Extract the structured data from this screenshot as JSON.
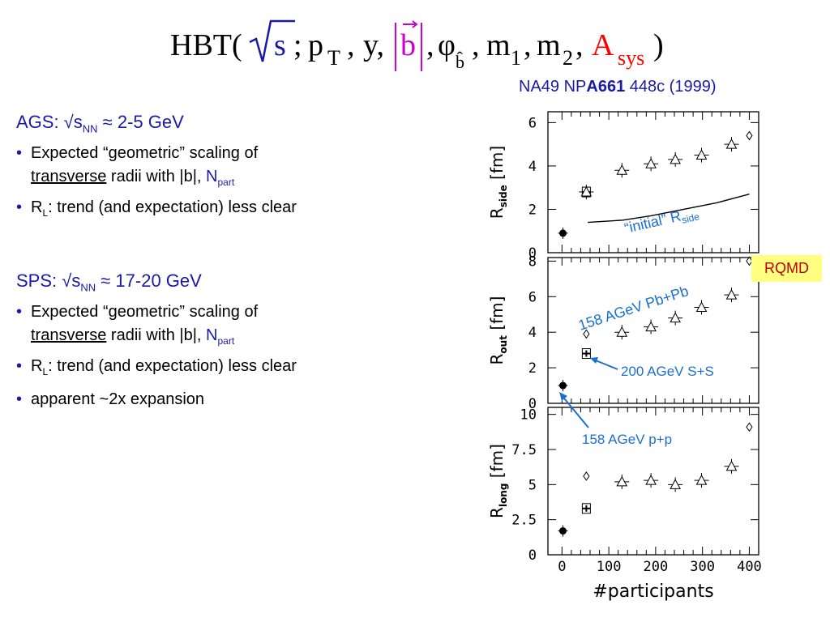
{
  "title": {
    "prefix": "HBT(",
    "sqrt_s": "s",
    "semicolon": ";",
    "p": "p",
    "p_sub": "T",
    "sep1": ",",
    "y": "y,",
    "b": "b",
    "sep2": ",",
    "phi": "φ",
    "phi_sub": "b̂",
    "m1": "m",
    "m1_sub": "1",
    "m2": "m",
    "m2_sub": "2",
    "A": "A",
    "A_sub": "sys",
    "suffix": ")",
    "colors": {
      "sqrt_s": "#1a1aa6",
      "b_vector": "#cc00cc",
      "A_sys": "#ff0000"
    }
  },
  "source": {
    "prefix": "NA49 NP",
    "volume": "A661",
    "suffix": " 448c (1999)"
  },
  "ags": {
    "heading_prefix": "AGS: √s",
    "heading_sub": "NN",
    "heading_suffix": " ≈ 2-5 GeV",
    "bullets": [
      {
        "line1": "Expected “geometric” scaling of",
        "underlined": "transverse",
        "line2_rest": " radii with |b|, ",
        "n": "N",
        "n_sub": "par",
        "n_end": "t"
      },
      {
        "r": "R",
        "r_sub": "L",
        "text": ": trend (and expectation) less clear"
      }
    ]
  },
  "sps": {
    "heading_prefix": "SPS: √s",
    "heading_sub": "NN",
    "heading_suffix": " ≈ 17-20 GeV",
    "bullets": [
      {
        "line1": "Expected “geometric” scaling of",
        "underlined": "transverse",
        "line2_rest": " radii with |b|, ",
        "n": "N",
        "n_sub": "par",
        "n_end": "t"
      },
      {
        "r": "R",
        "r_sub": "L",
        "text": ": trend (and expectation) less clear"
      },
      {
        "text": "apparent ~2x expansion"
      }
    ]
  },
  "rqmd_label": "RQMD",
  "annotations": {
    "initial": "“initial” R",
    "initial_sub": "side",
    "pbpb": "158 AGeV Pb+Pb",
    "ss": "200 AGeV S+S",
    "pp": "158 AGeV p+p"
  },
  "chart_data": {
    "type": "scatter",
    "xlabel": "#participants",
    "xlim": [
      -30,
      420
    ],
    "x_ticks": [
      "0",
      "100",
      "200",
      "300",
      "400"
    ],
    "panels": [
      {
        "ylabel": "R",
        "ylabel_sub": "side",
        "ylabel_suffix": " [fm]",
        "ylim": [
          0,
          6.5
        ],
        "y_ticks": [
          "0",
          "2",
          "4",
          "6"
        ],
        "series": [
          {
            "name": "158 AGeV p+p",
            "marker": "filled-circle",
            "points": [
              [
                2,
                0.9
              ]
            ]
          },
          {
            "name": "200 AGeV S+S",
            "marker": "filled-star",
            "points": [
              [
                52,
                2.8
              ]
            ]
          },
          {
            "name": "158 AGeV Pb+Pb",
            "marker": "open-triangle",
            "points": [
              [
                52,
                2.8
              ],
              [
                128,
                3.8
              ],
              [
                190,
                4.1
              ],
              [
                242,
                4.3
              ],
              [
                298,
                4.5
              ],
              [
                362,
                5.0
              ]
            ]
          },
          {
            "name": "RQMD",
            "marker": "open-diamond",
            "points": [
              [
                400,
                5.4
              ]
            ]
          },
          {
            "name": "“initial” R",
            "marker": "line",
            "points": [
              [
                55,
                1.4
              ],
              [
                130,
                1.5
              ],
              [
                190,
                1.7
              ],
              [
                260,
                2.0
              ],
              [
                330,
                2.3
              ],
              [
                400,
                2.7
              ]
            ]
          }
        ]
      },
      {
        "ylabel": "R",
        "ylabel_sub": "out",
        "ylabel_suffix": " [fm]",
        "ylim": [
          0,
          8.2
        ],
        "y_ticks": [
          "0",
          "2",
          "4",
          "6",
          "8"
        ],
        "series": [
          {
            "name": "158 AGeV p+p",
            "marker": "filled-circle",
            "points": [
              [
                2,
                1.0
              ]
            ]
          },
          {
            "name": "200 AGeV S+S",
            "marker": "filled-star",
            "points": [
              [
                52,
                2.8
              ]
            ]
          },
          {
            "name": "158 AGeV Pb+Pb",
            "marker": "open-triangle",
            "points": [
              [
                128,
                4.0
              ],
              [
                190,
                4.3
              ],
              [
                242,
                4.8
              ],
              [
                298,
                5.4
              ],
              [
                362,
                6.1
              ]
            ]
          },
          {
            "name": "RQMD",
            "marker": "open-diamond",
            "points": [
              [
                52,
                3.9
              ],
              [
                400,
                8.0
              ]
            ]
          }
        ]
      },
      {
        "ylabel": "R",
        "ylabel_sub": "long",
        "ylabel_suffix": " [fm]",
        "ylim": [
          0,
          10.5
        ],
        "y_ticks": [
          "0",
          "2.5",
          "5",
          "7.5",
          "10"
        ],
        "series": [
          {
            "name": "158 AGeV p+p",
            "marker": "filled-circle",
            "points": [
              [
                2,
                1.7
              ]
            ]
          },
          {
            "name": "200 AGeV S+S",
            "marker": "filled-star",
            "points": [
              [
                52,
                3.3
              ]
            ]
          },
          {
            "name": "158 AGeV Pb+Pb",
            "marker": "open-triangle",
            "points": [
              [
                128,
                5.2
              ],
              [
                190,
                5.3
              ],
              [
                242,
                5.0
              ],
              [
                298,
                5.3
              ],
              [
                362,
                6.3
              ]
            ]
          },
          {
            "name": "RQMD",
            "marker": "open-diamond",
            "points": [
              [
                52,
                5.6
              ],
              [
                400,
                9.1
              ]
            ]
          }
        ]
      }
    ]
  }
}
